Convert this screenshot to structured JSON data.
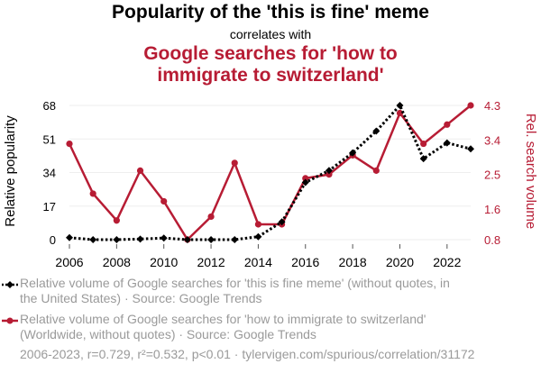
{
  "header": {
    "title": "Popularity of the 'this is fine' meme",
    "correlates": "correlates with",
    "subtitle_line1": "Google searches for 'how to",
    "subtitle_line2": "immigrate to switzerland'"
  },
  "chart_data": {
    "type": "line",
    "x": [
      2006,
      2007,
      2008,
      2009,
      2010,
      2011,
      2012,
      2013,
      2014,
      2015,
      2016,
      2017,
      2018,
      2019,
      2020,
      2021,
      2022,
      2023
    ],
    "xticks": [
      "2006",
      "2008",
      "2010",
      "2012",
      "2014",
      "2016",
      "2018",
      "2020",
      "2022"
    ],
    "xlim": [
      2006,
      2023
    ],
    "series": [
      {
        "name": "Relative popularity",
        "axis": "left",
        "style": "dotted",
        "marker": "diamond",
        "color": "#000000",
        "values": [
          1,
          0,
          0,
          0.3,
          0.8,
          0,
          0,
          0,
          1.5,
          9,
          29,
          35,
          44,
          55,
          68,
          41,
          49,
          46
        ]
      },
      {
        "name": "Rel. search volume",
        "axis": "right",
        "style": "solid",
        "marker": "circle",
        "color": "#b71c34",
        "values": [
          3.3,
          2.0,
          1.3,
          2.6,
          1.8,
          0.8,
          1.4,
          2.8,
          1.2,
          1.2,
          2.4,
          2.5,
          3.0,
          2.6,
          4.1,
          3.3,
          3.8,
          4.3
        ]
      }
    ],
    "left_axis": {
      "label": "Relative popularity",
      "ticks": [
        "0",
        "17",
        "34",
        "51",
        "68"
      ],
      "ylim": [
        0,
        68
      ]
    },
    "right_axis": {
      "label": "Rel. search volume",
      "ticks": [
        "0.8",
        "1.6",
        "2.5",
        "3.4",
        "4.3"
      ],
      "ylim": [
        0.8,
        4.3
      ]
    }
  },
  "legend": {
    "series1": "Relative volume of Google searches for 'this is fine meme' (without quotes, in the United States) · Source: Google Trends",
    "series2": "Relative volume of Google searches for 'how to immigrate to switzerland' (Worldwide, without quotes) · Source: Google Trends"
  },
  "footer": "2006-2023, r=0.729, r²=0.532, p<0.01 · tylervigen.com/spurious/correlation/31172"
}
